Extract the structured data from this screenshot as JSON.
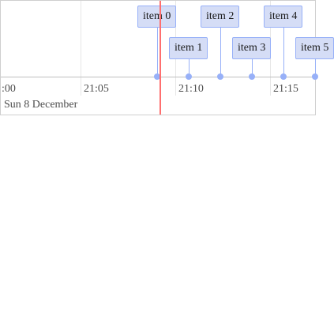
{
  "timeline": {
    "axis": {
      "ticks": [
        {
          "label": ":00"
        },
        {
          "label": "21:05"
        },
        {
          "label": "21:10"
        },
        {
          "label": "21:15"
        }
      ],
      "date": "Sun 8 December"
    },
    "items": [
      {
        "label": "item 0"
      },
      {
        "label": "item 1"
      },
      {
        "label": "item 2"
      },
      {
        "label": "item 3"
      },
      {
        "label": "item 4"
      },
      {
        "label": "item 5"
      }
    ],
    "colors": {
      "item_fill": "#d5ddf6",
      "item_border": "#97b0f8",
      "current_time": "#ff6f6f"
    }
  }
}
